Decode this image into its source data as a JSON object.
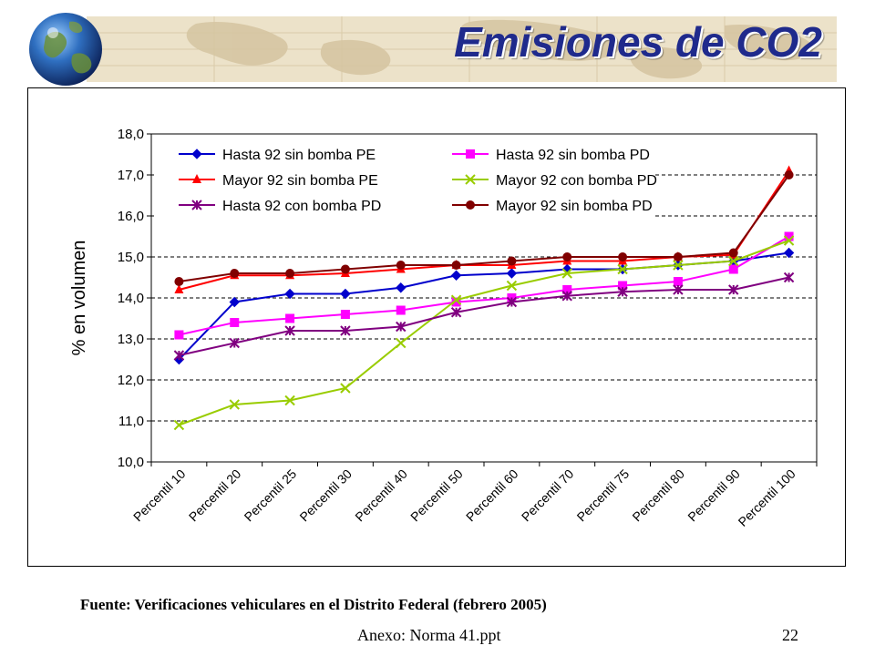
{
  "slide": {
    "title": "Emisiones de CO2",
    "source": "Fuente: Verificaciones vehiculares en el Distrito Federal (febrero 2005)",
    "footer_file": "Anexo: Norma 41.ppt",
    "page_number": "22"
  },
  "colors": {
    "title": "#1f2a8c",
    "header_band": "#e8dcc0"
  },
  "chart_data": {
    "type": "line",
    "title": "",
    "xlabel": "",
    "ylabel": "% en volumen",
    "ylim": [
      10,
      18
    ],
    "yticks": [
      "10,0",
      "11,0",
      "12,0",
      "13,0",
      "14,0",
      "15,0",
      "16,0",
      "17,0",
      "18,0"
    ],
    "grid": "horizontal dashed",
    "legend_position": "top-left inside plot",
    "categories": [
      "Percentil 10",
      "Percentil 20",
      "Percentil 25",
      "Percentil 30",
      "Percentil 40",
      "Percentil 50",
      "Percentil 60",
      "Percentil 70",
      "Percentil 75",
      "Percentil 80",
      "Percentil 90",
      "Percentil 100"
    ],
    "series": [
      {
        "name": "Hasta 92 sin bomba PE",
        "color": "#0000cc",
        "marker": "diamond",
        "values": [
          12.5,
          13.9,
          14.1,
          14.1,
          14.25,
          14.55,
          14.6,
          14.7,
          14.7,
          14.8,
          14.9,
          15.1
        ]
      },
      {
        "name": "Hasta 92 sin bomba PD",
        "color": "#ff00ff",
        "marker": "square",
        "values": [
          13.1,
          13.4,
          13.5,
          13.6,
          13.7,
          13.9,
          14.0,
          14.2,
          14.3,
          14.4,
          14.7,
          15.5
        ]
      },
      {
        "name": "Mayor 92 sin bomba PE",
        "color": "#ff0000",
        "marker": "triangle",
        "values": [
          14.2,
          14.55,
          14.55,
          14.6,
          14.7,
          14.8,
          14.8,
          14.9,
          14.9,
          15.0,
          15.05,
          17.1
        ]
      },
      {
        "name": "Mayor 92 con bomba PD",
        "color": "#99cc00",
        "marker": "x",
        "values": [
          10.9,
          11.4,
          11.5,
          11.8,
          12.9,
          13.95,
          14.3,
          14.6,
          14.7,
          14.8,
          14.9,
          15.4
        ]
      },
      {
        "name": "Hasta 92 con bomba PD",
        "color": "#800080",
        "marker": "star",
        "values": [
          12.6,
          12.9,
          13.2,
          13.2,
          13.3,
          13.65,
          13.9,
          14.05,
          14.15,
          14.2,
          14.2,
          14.5
        ]
      },
      {
        "name": "Mayor 92 sin bomba PD",
        "color": "#800000",
        "marker": "circle",
        "values": [
          14.4,
          14.6,
          14.6,
          14.7,
          14.8,
          14.8,
          14.9,
          15.0,
          15.0,
          15.0,
          15.1,
          17.0
        ]
      }
    ]
  }
}
